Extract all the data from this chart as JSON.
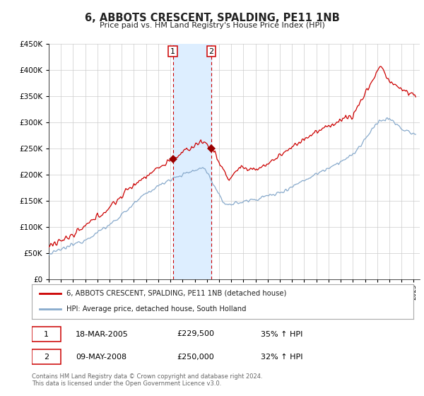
{
  "title": "6, ABBOTS CRESCENT, SPALDING, PE11 1NB",
  "subtitle": "Price paid vs. HM Land Registry's House Price Index (HPI)",
  "ytick_vals": [
    0,
    50000,
    100000,
    150000,
    200000,
    250000,
    300000,
    350000,
    400000,
    450000
  ],
  "ylim": [
    0,
    450000
  ],
  "xlim_start": 1995.0,
  "xlim_end": 2025.5,
  "sale1_date": "18-MAR-2005",
  "sale1_x": 2005.21,
  "sale1_price": 229500,
  "sale1_hpi_pct": "35% ↑ HPI",
  "sale2_date": "09-MAY-2008",
  "sale2_x": 2008.37,
  "sale2_price": 250000,
  "sale2_hpi_pct": "32% ↑ HPI",
  "line1_label": "6, ABBOTS CRESCENT, SPALDING, PE11 1NB (detached house)",
  "line2_label": "HPI: Average price, detached house, South Holland",
  "line1_color": "#cc0000",
  "line2_color": "#88aacc",
  "shading_color": "#ddeeff",
  "vline_color": "#cc0000",
  "marker_color": "#990000",
  "grid_color": "#cccccc",
  "bg_color": "#ffffff",
  "footnote1": "Contains HM Land Registry data © Crown copyright and database right 2024.",
  "footnote2": "This data is licensed under the Open Government Licence v3.0.",
  "table_border_color": "#cc0000"
}
